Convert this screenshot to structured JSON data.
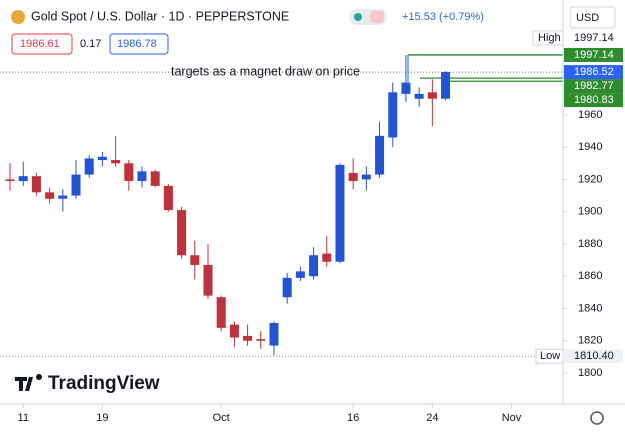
{
  "header": {
    "symbol": "Gold Spot / U.S. Dollar · 1D · PEPPERSTONE",
    "change": "+15.53 (+0.79%)",
    "currency": "USD",
    "bid": "1986.61",
    "spread": "0.17",
    "ask": "1986.78"
  },
  "annotation": "targets as a magnet draw on price",
  "watermark": "TradingView",
  "chart_data": {
    "type": "candlestick",
    "up_color": "#2454d6",
    "down_color": "#c0313b",
    "open": [
      1920,
      1919,
      1922,
      1912,
      1908,
      1910,
      1923,
      1932,
      1932,
      1930,
      1919,
      1925,
      1916,
      1901,
      1873,
      1867,
      1847,
      1830,
      1823,
      1821,
      1817,
      1847,
      1859,
      1860,
      1874,
      1869,
      1924,
      1920,
      1923,
      1946,
      1973,
      1970,
      1974,
      1970
    ],
    "high": [
      1930,
      1931,
      1924,
      1915,
      1914,
      1932,
      1935,
      1937,
      1947,
      1932,
      1928,
      1926,
      1917,
      1903,
      1882,
      1880,
      1848,
      1832,
      1830,
      1826,
      1832,
      1862,
      1866,
      1878,
      1885,
      1930,
      1933,
      1928,
      1956,
      1980,
      1997,
      1977,
      1982,
      1987
    ],
    "low": [
      1913,
      1916,
      1910,
      1905,
      1900,
      1908,
      1921,
      1928,
      1928,
      1913,
      1915,
      1915,
      1900,
      1871,
      1858,
      1846,
      1826,
      1816,
      1817,
      1815,
      1811,
      1843,
      1857,
      1858,
      1866,
      1868,
      1914,
      1913,
      1921,
      1940,
      1968,
      1965,
      1953,
      1969
    ],
    "close": [
      1919,
      1922,
      1912,
      1908,
      1910,
      1923,
      1933,
      1934,
      1930,
      1919,
      1925,
      1916,
      1901,
      1873,
      1867,
      1848,
      1828,
      1822,
      1820,
      1820,
      1831,
      1859,
      1863,
      1873,
      1869,
      1929,
      1919,
      1923,
      1947,
      1974,
      1980,
      1973,
      1970,
      1986.52
    ],
    "xlim": [
      -0.76,
      41.9
    ],
    "xticks": [
      {
        "value": 1,
        "label": "11"
      },
      {
        "value": 7,
        "label": "19"
      },
      {
        "value": 16,
        "label": "Oct"
      },
      {
        "value": 26,
        "label": "16"
      },
      {
        "value": 32,
        "label": "24"
      },
      {
        "value": 38,
        "label": "Nov"
      }
    ],
    "ylim": [
      1780.8,
      2031.2
    ],
    "yticks": [
      1800,
      1820,
      1840,
      1860,
      1880,
      1900,
      1920,
      1940,
      1960
    ],
    "high_mark": {
      "label": "High",
      "value": 1997.14
    },
    "low_mark": {
      "label": "Low",
      "value": {
        "value": 1810.4,
        "label": "1810.40"
      }
    },
    "last_price": 1986.52,
    "levels": [
      1997.14,
      1982.77,
      1980.83
    ],
    "level_color": "#2e8b2e"
  }
}
